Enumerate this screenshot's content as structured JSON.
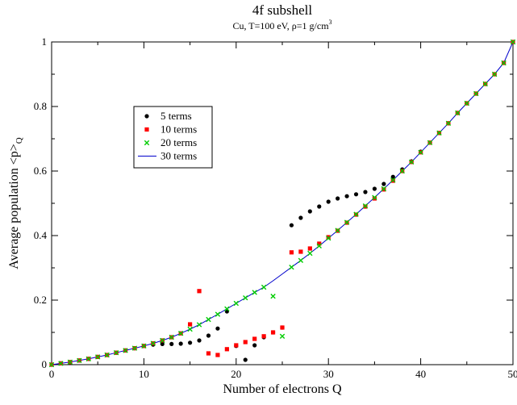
{
  "chart_data": {
    "type": "scatter",
    "title": "4f subshell",
    "subtitle": {
      "text": "Cu, T=100 eV, ρ=1 g/cm",
      "superscript": "3"
    },
    "xlabel": "Number of electrons Q",
    "ylabel": {
      "text": "Average population <p>",
      "subscript": "Q"
    },
    "xlim": [
      0,
      50
    ],
    "ylim": [
      0,
      1
    ],
    "xticks": [
      {
        "value": 0,
        "label": "0"
      },
      {
        "value": 10,
        "label": "10"
      },
      {
        "value": 20,
        "label": "20"
      },
      {
        "value": 30,
        "label": "30"
      },
      {
        "value": 40,
        "label": "40"
      },
      {
        "value": 50,
        "label": "50"
      }
    ],
    "yticks": [
      {
        "value": 0,
        "label": "0"
      },
      {
        "value": 0.2,
        "label": "0.2"
      },
      {
        "value": 0.4,
        "label": "0.4"
      },
      {
        "value": 0.6,
        "label": "0.6"
      },
      {
        "value": 0.8,
        "label": "0.8"
      },
      {
        "value": 1,
        "label": "1"
      }
    ],
    "grid": false,
    "legend_position": "upper-left",
    "series": [
      {
        "name": "5 terms",
        "marker": "circle",
        "color": "#000000",
        "x": [
          0,
          1,
          2,
          3,
          4,
          5,
          6,
          7,
          8,
          9,
          10,
          11,
          12,
          13,
          14,
          15,
          16,
          17,
          18,
          19,
          20,
          21,
          22,
          23,
          24,
          25,
          26,
          27,
          28,
          29,
          30,
          31,
          32,
          33,
          34,
          35,
          36,
          37,
          38,
          39,
          40,
          41,
          42,
          43,
          44,
          45,
          46,
          47,
          48,
          49,
          50
        ],
        "y": [
          0,
          0.004,
          0.008,
          0.013,
          0.018,
          0.024,
          0.03,
          0.037,
          0.044,
          0.051,
          0.058,
          0.062,
          0.064,
          0.064,
          0.065,
          0.068,
          0.075,
          0.09,
          0.112,
          0.165,
          0.058,
          0.015,
          0.06,
          0.085,
          0.1,
          0.115,
          0.432,
          0.455,
          0.475,
          0.49,
          0.505,
          0.515,
          0.522,
          0.528,
          0.535,
          0.545,
          0.56,
          0.582,
          0.605,
          0.63,
          0.66,
          0.688,
          0.718,
          0.748,
          0.78,
          0.81,
          0.84,
          0.87,
          0.9,
          0.935,
          1.0
        ]
      },
      {
        "name": "10 terms",
        "marker": "square",
        "color": "#ff0000",
        "x": [
          0,
          1,
          2,
          3,
          4,
          5,
          6,
          7,
          8,
          9,
          10,
          11,
          12,
          13,
          14,
          15,
          16,
          17,
          18,
          19,
          20,
          21,
          22,
          23,
          24,
          25,
          26,
          27,
          28,
          29,
          30,
          31,
          32,
          33,
          34,
          35,
          36,
          37,
          38,
          39,
          40,
          41,
          42,
          43,
          44,
          45,
          46,
          47,
          48,
          49,
          50
        ],
        "y": [
          0,
          0.004,
          0.008,
          0.013,
          0.018,
          0.024,
          0.03,
          0.037,
          0.044,
          0.051,
          0.058,
          0.066,
          0.075,
          0.085,
          0.097,
          0.125,
          0.228,
          0.035,
          0.03,
          0.048,
          0.06,
          0.07,
          0.08,
          0.088,
          0.1,
          0.115,
          0.348,
          0.35,
          0.36,
          0.375,
          0.395,
          0.415,
          0.44,
          0.465,
          0.49,
          0.515,
          0.543,
          0.57,
          0.6,
          0.628,
          0.658,
          0.688,
          0.718,
          0.748,
          0.78,
          0.81,
          0.84,
          0.87,
          0.9,
          0.935,
          1.0
        ]
      },
      {
        "name": "20 terms",
        "marker": "x",
        "color": "#00cc00",
        "x": [
          0,
          1,
          2,
          3,
          4,
          5,
          6,
          7,
          8,
          9,
          10,
          11,
          12,
          13,
          14,
          15,
          16,
          17,
          18,
          19,
          20,
          21,
          22,
          23,
          24,
          25,
          26,
          27,
          28,
          29,
          30,
          31,
          32,
          33,
          34,
          35,
          36,
          37,
          38,
          39,
          40,
          41,
          42,
          43,
          44,
          45,
          46,
          47,
          48,
          49,
          50
        ],
        "y": [
          0,
          0.004,
          0.008,
          0.013,
          0.018,
          0.024,
          0.03,
          0.037,
          0.044,
          0.051,
          0.058,
          0.066,
          0.075,
          0.085,
          0.097,
          0.11,
          0.124,
          0.14,
          0.156,
          0.173,
          0.19,
          0.207,
          0.224,
          0.24,
          0.212,
          0.088,
          0.302,
          0.323,
          0.345,
          0.368,
          0.392,
          0.416,
          0.441,
          0.466,
          0.492,
          0.518,
          0.545,
          0.572,
          0.6,
          0.628,
          0.658,
          0.688,
          0.718,
          0.748,
          0.78,
          0.81,
          0.84,
          0.87,
          0.9,
          0.935,
          1.0
        ]
      },
      {
        "name": "30 terms",
        "marker": "line",
        "color": "#0000cc",
        "x": [
          0,
          1,
          2,
          3,
          4,
          5,
          6,
          7,
          8,
          9,
          10,
          11,
          12,
          13,
          14,
          15,
          16,
          17,
          18,
          19,
          20,
          21,
          22,
          23,
          24,
          25,
          26,
          27,
          28,
          29,
          30,
          31,
          32,
          33,
          34,
          35,
          36,
          37,
          38,
          39,
          40,
          41,
          42,
          43,
          44,
          45,
          46,
          47,
          48,
          49,
          50
        ],
        "y": [
          0,
          0.004,
          0.008,
          0.013,
          0.018,
          0.024,
          0.03,
          0.037,
          0.044,
          0.051,
          0.058,
          0.066,
          0.075,
          0.085,
          0.097,
          0.11,
          0.124,
          0.14,
          0.156,
          0.173,
          0.19,
          0.207,
          0.224,
          0.24,
          0.26,
          0.281,
          0.302,
          0.323,
          0.345,
          0.368,
          0.392,
          0.416,
          0.441,
          0.466,
          0.492,
          0.518,
          0.545,
          0.572,
          0.6,
          0.628,
          0.658,
          0.688,
          0.718,
          0.748,
          0.78,
          0.81,
          0.84,
          0.87,
          0.9,
          0.935,
          1.0
        ]
      }
    ]
  }
}
